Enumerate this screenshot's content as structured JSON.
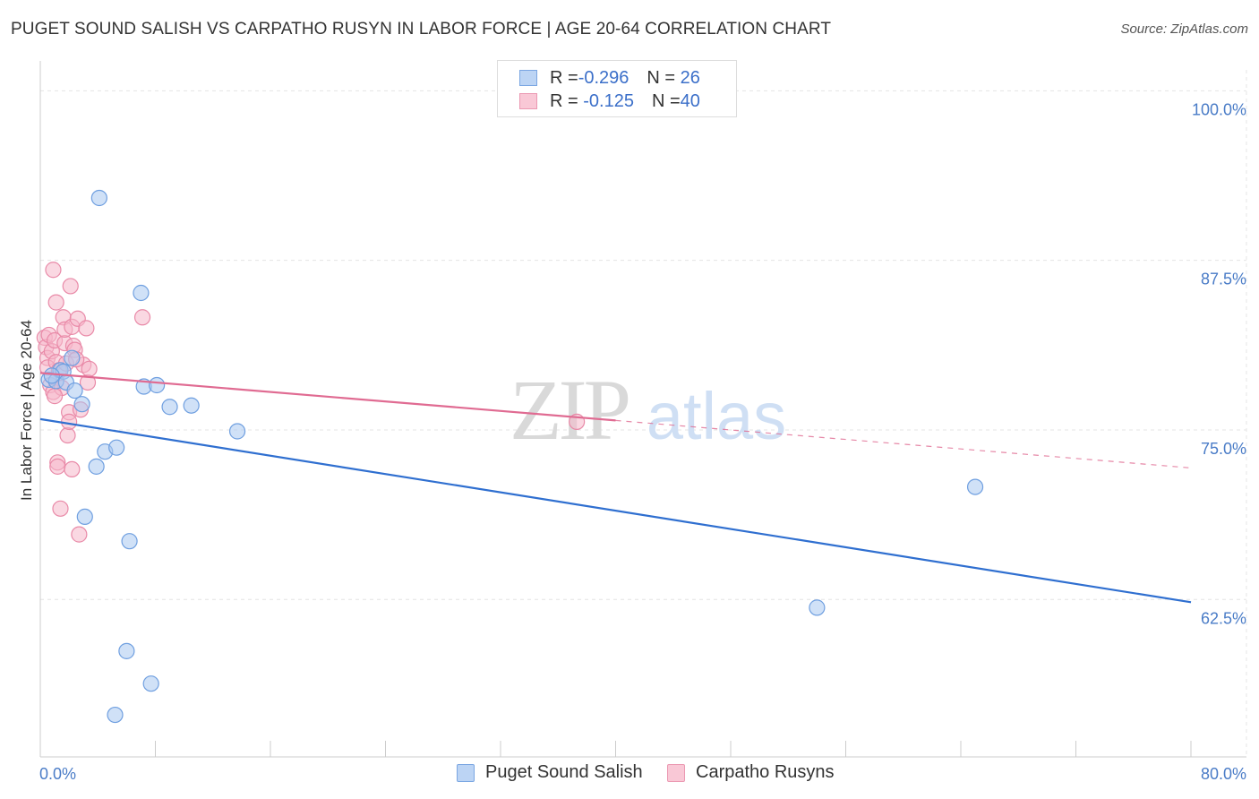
{
  "title": "PUGET SOUND SALISH VS CARPATHO RUSYN IN LABOR FORCE | AGE 20-64 CORRELATION CHART",
  "source": "Source: ZipAtlas.com",
  "watermark": {
    "zip": "ZIP",
    "atlas": "atlas"
  },
  "legend": {
    "rows": [
      {
        "r_label": "R = ",
        "r_value": "-0.296",
        "n_label": "N = ",
        "n_value": "26"
      },
      {
        "r_label": "R = ",
        "r_value": "-0.125",
        "n_label": "N = ",
        "n_value": "40"
      }
    ]
  },
  "colors": {
    "blue_fill": "#a9c8f0",
    "blue_stroke": "#6f9fe0",
    "blue_line": "#2f6fd0",
    "pink_fill": "#f6b8ca",
    "pink_stroke": "#e98aa8",
    "pink_line": "#e06b92",
    "grid": "#e4e4e4",
    "axis_text": "#4a7cc7"
  },
  "chart_data": {
    "type": "scatter",
    "title": "PUGET SOUND SALISH VS CARPATHO RUSYN IN LABOR FORCE | AGE 20-64 CORRELATION CHART",
    "xlabel": "",
    "ylabel": "In Labor Force | Age 20-64",
    "xlim": [
      0,
      80
    ],
    "ylim": [
      50.9,
      102.2
    ],
    "x_tick_labels": [
      "0.0%",
      "80.0%"
    ],
    "y_ticks": [
      100.0,
      87.5,
      75.0,
      62.5
    ],
    "y_tick_labels": [
      "100.0%",
      "87.5%",
      "75.0%",
      "62.5%"
    ],
    "grid": true,
    "legend_placement": "top-center",
    "series": [
      {
        "name": "Puget Sound Salish",
        "color": "#6f9fe0",
        "r": -0.296,
        "n": 26,
        "trend": {
          "x0": 0,
          "y0": 75.8,
          "x1": 80,
          "y1": 62.3,
          "dashed_to": null
        },
        "points": [
          [
            0.6,
            78.7
          ],
          [
            1.1,
            78.6
          ],
          [
            1.4,
            79.4
          ],
          [
            1.6,
            79.3
          ],
          [
            1.8,
            78.5
          ],
          [
            2.2,
            80.3
          ],
          [
            2.4,
            77.9
          ],
          [
            2.9,
            76.9
          ],
          [
            3.1,
            68.6
          ],
          [
            3.9,
            72.3
          ],
          [
            4.1,
            92.1
          ],
          [
            4.5,
            73.4
          ],
          [
            5.3,
            73.7
          ],
          [
            5.2,
            54.0
          ],
          [
            6.0,
            58.7
          ],
          [
            6.2,
            66.8
          ],
          [
            7.0,
            85.1
          ],
          [
            7.2,
            78.2
          ],
          [
            7.7,
            56.3
          ],
          [
            8.1,
            78.3
          ],
          [
            9.0,
            76.7
          ],
          [
            10.5,
            76.8
          ],
          [
            13.7,
            74.9
          ],
          [
            54.0,
            61.9
          ],
          [
            65.0,
            70.8
          ],
          [
            0.8,
            79.0
          ]
        ]
      },
      {
        "name": "Carpatho Rusyns",
        "color": "#e98aa8",
        "r": -0.125,
        "n": 40,
        "trend": {
          "x0": 0,
          "y0": 79.2,
          "x1": 40,
          "y1": 75.7,
          "dashed_to": {
            "x": 80,
            "y": 72.2
          }
        },
        "points": [
          [
            0.3,
            81.8
          ],
          [
            0.4,
            81.1
          ],
          [
            0.5,
            80.3
          ],
          [
            0.5,
            79.6
          ],
          [
            0.6,
            82.0
          ],
          [
            0.7,
            78.3
          ],
          [
            0.8,
            80.8
          ],
          [
            0.9,
            77.8
          ],
          [
            0.9,
            86.8
          ],
          [
            1.0,
            81.6
          ],
          [
            1.1,
            84.4
          ],
          [
            1.1,
            80.0
          ],
          [
            1.2,
            72.6
          ],
          [
            1.2,
            72.3
          ],
          [
            1.3,
            79.4
          ],
          [
            1.4,
            69.2
          ],
          [
            1.5,
            78.1
          ],
          [
            1.6,
            83.3
          ],
          [
            1.7,
            81.4
          ],
          [
            1.7,
            82.4
          ],
          [
            1.8,
            79.9
          ],
          [
            1.9,
            74.6
          ],
          [
            2.0,
            76.3
          ],
          [
            2.0,
            75.6
          ],
          [
            2.1,
            85.6
          ],
          [
            2.2,
            72.1
          ],
          [
            2.2,
            82.6
          ],
          [
            2.3,
            81.2
          ],
          [
            2.4,
            80.9
          ],
          [
            2.6,
            83.2
          ],
          [
            2.7,
            67.3
          ],
          [
            2.8,
            76.5
          ],
          [
            3.0,
            79.8
          ],
          [
            3.2,
            82.5
          ],
          [
            3.3,
            78.5
          ],
          [
            3.4,
            79.5
          ],
          [
            2.5,
            80.2
          ],
          [
            1.0,
            77.5
          ],
          [
            7.1,
            83.3
          ],
          [
            37.3,
            75.6
          ]
        ]
      }
    ]
  },
  "bottom_legend": [
    {
      "label": "Puget Sound Salish"
    },
    {
      "label": "Carpatho Rusyns"
    }
  ]
}
